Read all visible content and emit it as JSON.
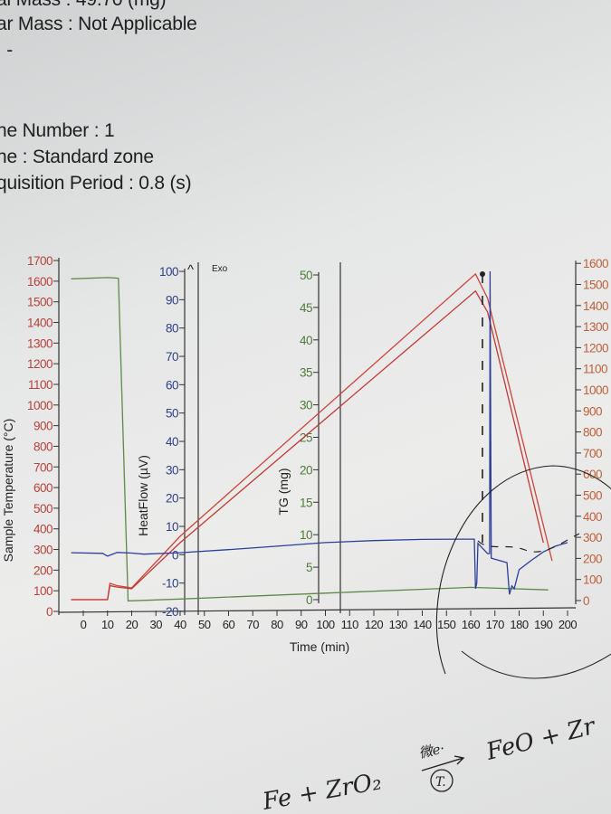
{
  "header": {
    "lines": [
      "al Mass : 49.70   (mg)",
      "ar Mass : Not Applicable",
      " : -",
      "ne Number : 1",
      "ne : Standard zone",
      "quisition Period : 0.8 (s)"
    ]
  },
  "chart_data": {
    "type": "line",
    "title": "",
    "xlabel": "Time (min)",
    "xlim": [
      -5,
      200
    ],
    "xticks": [
      0,
      10,
      20,
      30,
      40,
      50,
      60,
      70,
      80,
      90,
      100,
      110,
      120,
      130,
      140,
      150,
      160,
      170,
      180,
      190,
      200
    ],
    "axes": {
      "sample_temperature": {
        "label": "Sample Temperature (°C)",
        "ylim": [
          0,
          1700
        ],
        "ticks": [
          0,
          100,
          200,
          300,
          400,
          500,
          600,
          700,
          800,
          900,
          1000,
          1100,
          1200,
          1300,
          1400,
          1500,
          1600,
          1700
        ],
        "color": "#b8413c"
      },
      "heatflow": {
        "label": "HeatFlow (µV)",
        "ylim": [
          -20,
          100
        ],
        "ticks": [
          -20,
          -10,
          0,
          10,
          20,
          30,
          40,
          50,
          60,
          70,
          80,
          90,
          100
        ],
        "color": "#2f3f86",
        "annotation": "Exo"
      },
      "tg": {
        "label": "TG (mg)",
        "ylim": [
          0,
          50
        ],
        "ticks": [
          0,
          5,
          10,
          15,
          20,
          25,
          30,
          35,
          40,
          45,
          50
        ],
        "color": "#4f7a3a"
      },
      "right_temperature": {
        "ylim": [
          0,
          1600
        ],
        "ticks": [
          0,
          100,
          200,
          300,
          400,
          500,
          600,
          700,
          800,
          900,
          1000,
          1100,
          1200,
          1300,
          1400,
          1500,
          1600
        ],
        "color": "#c0603a"
      }
    },
    "grid": false,
    "series": [
      {
        "axis": "tg",
        "color": "#5d8a4a",
        "x": [
          -5,
          10,
          14.5,
          18.5,
          40,
          100,
          160,
          192
        ],
        "y": [
          49.4,
          49.6,
          49.5,
          -0.2,
          0.1,
          1.0,
          1.9,
          1.5
        ]
      },
      {
        "axis": "sample_temperature",
        "color": "#d0443a",
        "x": [
          -5,
          10,
          11,
          14,
          20,
          40,
          162,
          167,
          193.6
        ],
        "y": [
          57,
          57,
          136,
          125,
          114,
          364,
          1635,
          1517,
          245
        ]
      },
      {
        "axis": "sample_temperature",
        "color": "#c23a36",
        "x": [
          -5,
          10,
          11,
          14,
          20,
          40,
          162,
          167,
          190
        ],
        "y": [
          57,
          57,
          125,
          118,
          110,
          333,
          1552,
          1450,
          333
        ]
      },
      {
        "axis": "heatflow",
        "color": "#2c3e9a",
        "x": [
          -5,
          8,
          10,
          14,
          20,
          25,
          40,
          60,
          80,
          100,
          120,
          140,
          155,
          161.5,
          162,
          162.5,
          163,
          167,
          167.8,
          168,
          168.5,
          175,
          176,
          177,
          178,
          180,
          185,
          190,
          195,
          200
        ],
        "y": [
          0.7,
          0.5,
          -0.5,
          0.8,
          0.6,
          0.2,
          0.7,
          1.8,
          3,
          4.3,
          5,
          5.4,
          5.5,
          5.5,
          -12,
          -10,
          4,
          0.4,
          0.4,
          100,
          -1.2,
          -2.8,
          -14,
          -11,
          -12,
          -5.3,
          -2,
          1,
          3,
          4.3
        ]
      }
    ]
  },
  "annotations": {
    "handwriting": [
      "Fe + ZrO₂",
      "微e·",
      "T.",
      "FeO + Zr"
    ]
  }
}
